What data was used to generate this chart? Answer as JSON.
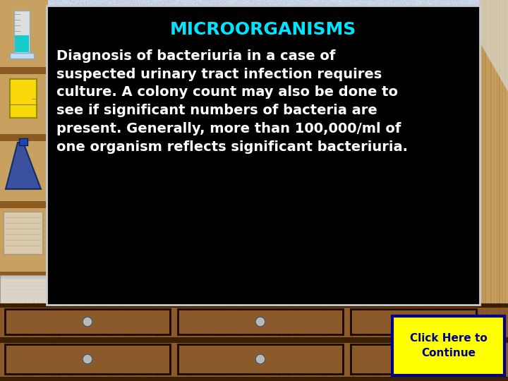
{
  "title": "MICROORGANISMS",
  "title_color": "#00e5ff",
  "title_fontsize": 18,
  "body_text": "Diagnosis of bacteriuria in a case of\nsuspected urinary tract infection requires\nculture. A colony count may also be done to\nsee if significant numbers of bacteria are\npresent. Generally, more than 100,000/ml of\none organism reflects significant bacteriuria.",
  "body_color": "#ffffff",
  "body_fontsize": 14,
  "bg_color": "#c8d4e8",
  "panel_color": "#000000",
  "panel_border_color": "#cccccc",
  "button_text": "Click Here to\nContinue",
  "button_bg": "#ffff00",
  "button_border": "#00008b",
  "button_text_color": "#00008b",
  "button_fontsize": 11,
  "drawer_color": "#8B5A2B",
  "drawer_dark": "#5a3010",
  "drawer_border": "#1a0800",
  "shelf_color": "#a06828",
  "shelf_dark": "#6b4010"
}
